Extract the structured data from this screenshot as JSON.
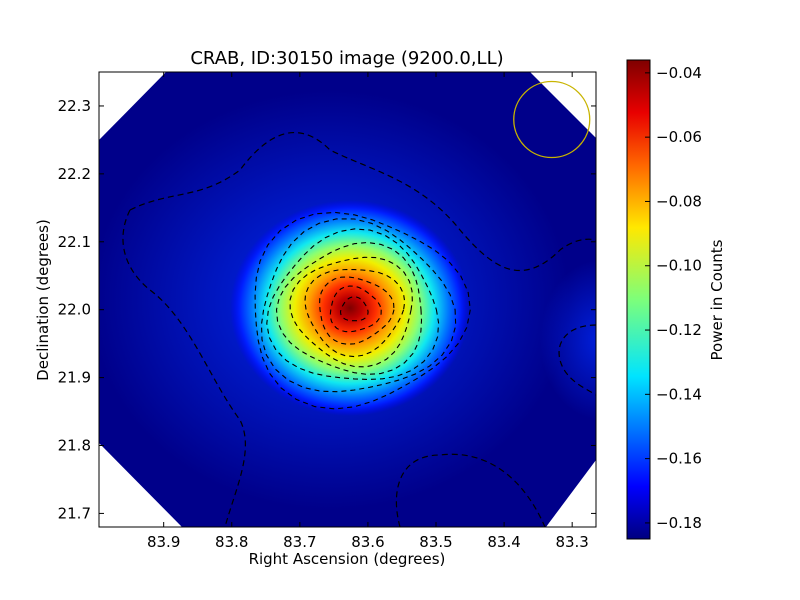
{
  "chart_data": {
    "type": "heatmap",
    "title": "CRAB, ID:30150 image (9200.0,LL)",
    "xlabel": "Right Ascension (degrees)",
    "ylabel": "Declination (degrees)",
    "xlim": [
      83.995,
      83.265
    ],
    "ylim": [
      21.68,
      22.35
    ],
    "x_ticks": [
      83.9,
      83.8,
      83.7,
      83.6,
      83.5,
      83.4,
      83.3
    ],
    "x_tick_labels": [
      "83.9",
      "83.8",
      "83.7",
      "83.6",
      "83.5",
      "83.4",
      "83.3"
    ],
    "y_ticks": [
      21.7,
      21.8,
      21.9,
      22.0,
      22.1,
      22.2,
      22.3
    ],
    "y_tick_labels": [
      "21.7",
      "21.8",
      "21.9",
      "22.0",
      "22.1",
      "22.2",
      "22.3"
    ],
    "colorbar": {
      "label": "Power in Counts",
      "range": [
        -0.185,
        -0.036
      ],
      "ticks": [
        -0.04,
        -0.06,
        -0.08,
        -0.1,
        -0.12,
        -0.14,
        -0.16,
        -0.18
      ],
      "tick_labels": [
        "−0.04",
        "−0.06",
        "−0.08",
        "−0.10",
        "−0.12",
        "−0.14",
        "−0.16",
        "−0.18"
      ],
      "colormap": "jet"
    },
    "peak": {
      "ra": 83.62,
      "dec": 22.0,
      "value": -0.036
    },
    "background_value": -0.18,
    "contour_style": "dashed-black",
    "beam_circle": {
      "ra": 83.33,
      "dec": 22.28,
      "color": "#c8b400"
    },
    "grid": false,
    "background_color": "#ffffff"
  }
}
